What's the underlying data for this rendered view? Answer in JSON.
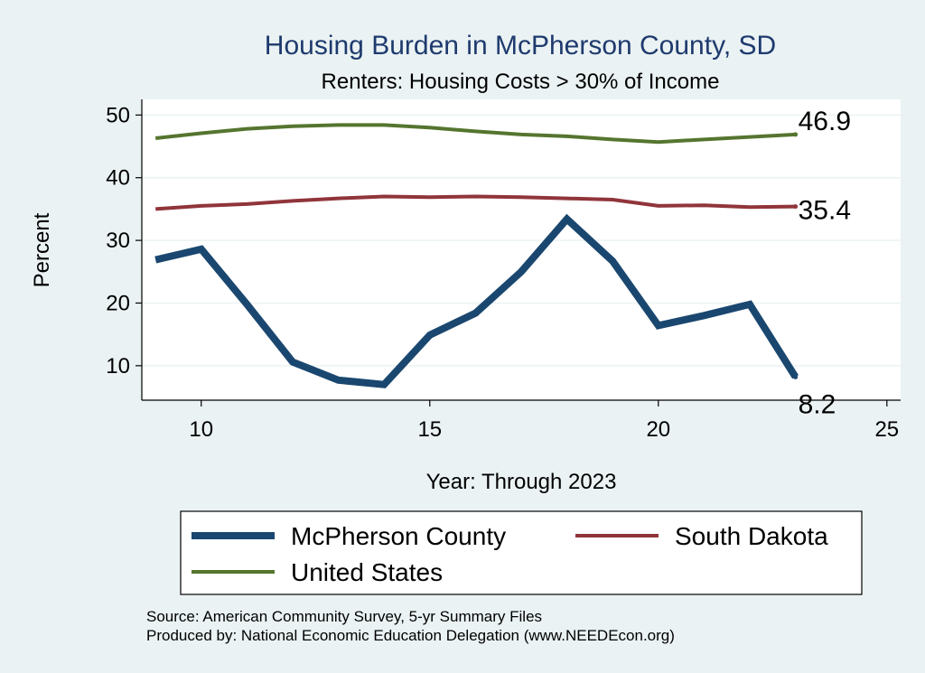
{
  "chart_data": {
    "type": "line",
    "title": "Housing Burden in McPherson County, SD",
    "subtitle": "Renters: Housing Costs > 30% of Income",
    "xlabel": "Year: Through 2023",
    "ylabel": "Percent",
    "xlim": [
      8.7,
      25.3
    ],
    "ylim": [
      4.5,
      52.5
    ],
    "xticks": [
      10,
      15,
      20,
      25
    ],
    "yticks": [
      10,
      20,
      30,
      40,
      50
    ],
    "grid": true,
    "legend_position": "bottom",
    "series": [
      {
        "name": "McPherson County",
        "color": "#1a476f",
        "x": [
          9,
          10,
          11,
          12,
          13,
          14,
          15,
          16,
          17,
          18,
          19,
          20,
          21,
          22,
          23
        ],
        "values": [
          26.9,
          28.6,
          19.8,
          10.6,
          7.7,
          7.0,
          14.9,
          18.4,
          25.0,
          33.4,
          26.7,
          16.4,
          18.0,
          19.8,
          8.2
        ],
        "end_label": "8.2"
      },
      {
        "name": "South Dakota",
        "color": "#90353b",
        "x": [
          9,
          10,
          11,
          12,
          13,
          14,
          15,
          16,
          17,
          18,
          19,
          20,
          21,
          22,
          23
        ],
        "values": [
          35.0,
          35.5,
          35.8,
          36.3,
          36.7,
          37.0,
          36.9,
          37.0,
          36.9,
          36.7,
          36.5,
          35.5,
          35.6,
          35.3,
          35.4
        ],
        "end_label": "35.4"
      },
      {
        "name": "United States",
        "color": "#55752f",
        "x": [
          9,
          10,
          11,
          12,
          13,
          14,
          15,
          16,
          17,
          18,
          19,
          20,
          21,
          22,
          23
        ],
        "values": [
          46.3,
          47.1,
          47.8,
          48.2,
          48.4,
          48.4,
          48.0,
          47.4,
          46.9,
          46.6,
          46.1,
          45.7,
          46.1,
          46.5,
          46.9
        ],
        "end_label": "46.9"
      }
    ],
    "legend": {
      "items": [
        "McPherson County",
        "South Dakota",
        "United States"
      ]
    },
    "notes": [
      "Source: American Community Survey, 5-yr Summary Files",
      "Produced by: National Economic Education Delegation (www.NEEDEcon.org)"
    ]
  }
}
